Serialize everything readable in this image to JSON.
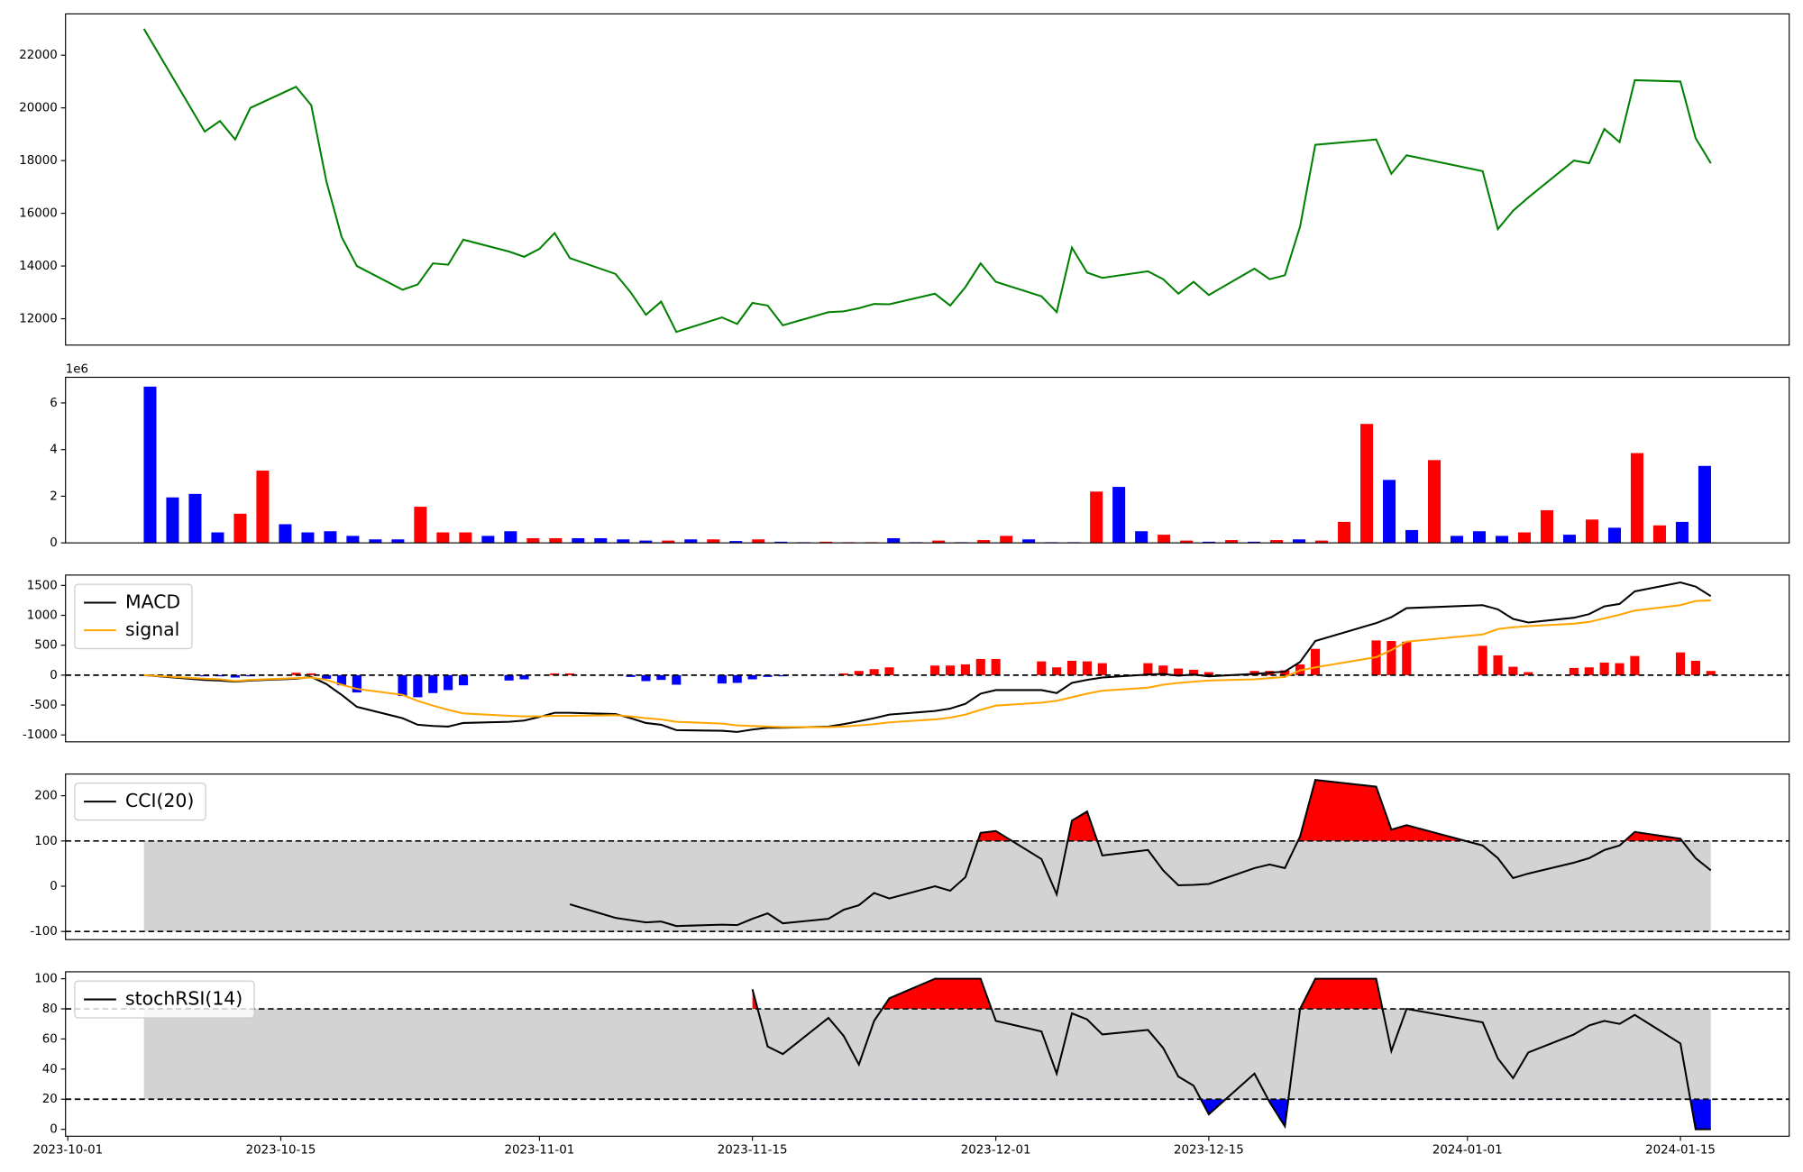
{
  "chart_data": [
    {
      "type": "line",
      "x": [
        "2023-10-06",
        "2023-10-10",
        "2023-10-11",
        "2023-10-12",
        "2023-10-13",
        "2023-10-16",
        "2023-10-17",
        "2023-10-18",
        "2023-10-19",
        "2023-10-20",
        "2023-10-23",
        "2023-10-24",
        "2023-10-25",
        "2023-10-26",
        "2023-10-27",
        "2023-10-30",
        "2023-10-31",
        "2023-11-01",
        "2023-11-02",
        "2023-11-03",
        "2023-11-06",
        "2023-11-07",
        "2023-11-08",
        "2023-11-09",
        "2023-11-10",
        "2023-11-13",
        "2023-11-14",
        "2023-11-15",
        "2023-11-16",
        "2023-11-17",
        "2023-11-20",
        "2023-11-21",
        "2023-11-22",
        "2023-11-23",
        "2023-11-24",
        "2023-11-27",
        "2023-11-28",
        "2023-11-29",
        "2023-11-30",
        "2023-12-01",
        "2023-12-04",
        "2023-12-05",
        "2023-12-06",
        "2023-12-07",
        "2023-12-08",
        "2023-12-11",
        "2023-12-12",
        "2023-12-13",
        "2023-12-14",
        "2023-12-15",
        "2023-12-18",
        "2023-12-19",
        "2023-12-20",
        "2023-12-21",
        "2023-12-22",
        "2023-12-26",
        "2023-12-27",
        "2023-12-28",
        "2024-01-02",
        "2024-01-03",
        "2024-01-04",
        "2024-01-05",
        "2024-01-08",
        "2024-01-09",
        "2024-01-10",
        "2024-01-11",
        "2024-01-12",
        "2024-01-15",
        "2024-01-16",
        "2024-01-17"
      ],
      "xlim": [
        "2023-09-30T20:24",
        "2024-01-22T03:36"
      ],
      "series": [
        {
          "color": "#008000",
          "values": [
            23000,
            19100,
            19500,
            18800,
            20000,
            20800,
            20100,
            17200,
            15100,
            14000,
            13100,
            13300,
            14100,
            14050,
            15000,
            14550,
            14350,
            14650,
            15250,
            14300,
            13700,
            13000,
            12150,
            12650,
            11500,
            12050,
            11800,
            12600,
            12500,
            11750,
            12250,
            12280,
            12400,
            12560,
            12550,
            12950,
            12500,
            13200,
            14100,
            13400,
            12850,
            12250,
            14700,
            13750,
            13550,
            13800,
            13500,
            12950,
            13400,
            12900,
            13900,
            13500,
            13650,
            15500,
            18600,
            18800,
            17500,
            18200,
            17600,
            15400,
            16100,
            16600,
            18000,
            17900,
            19200,
            18700,
            21050,
            21000,
            18850,
            17900
          ]
        }
      ],
      "ylim": [
        11000,
        23565
      ],
      "yticks": [
        12000,
        14000,
        16000,
        18000,
        20000,
        22000
      ]
    },
    {
      "type": "bar",
      "offset_text": "1e6",
      "values": [
        6.7,
        1.95,
        2.1,
        0.45,
        1.25,
        3.1,
        0.8,
        0.45,
        0.5,
        0.3,
        0.15,
        0.15,
        1.55,
        0.45,
        0.45,
        0.3,
        0.5,
        0.2,
        0.2,
        0.2,
        0.2,
        0.15,
        0.1,
        0.1,
        0.15,
        0.15,
        0.08,
        0.15,
        0.05,
        0.03,
        0.05,
        0.03,
        0.03,
        0.2,
        0.03,
        0.1,
        0.03,
        0.12,
        0.3,
        0.15,
        0.03,
        0.03,
        2.2,
        2.4,
        0.5,
        0.35,
        0.1,
        0.05,
        0.12,
        0.05,
        0.12,
        0.15,
        0.1,
        0.9,
        5.1,
        2.7,
        0.55,
        3.55,
        0.3,
        0.5,
        0.3,
        0.45,
        1.4,
        0.35,
        1.0,
        0.65,
        3.85,
        0.75,
        0.9,
        3.3
      ],
      "colors": [
        "blue",
        "blue",
        "blue",
        "blue",
        "red",
        "red",
        "blue",
        "blue",
        "blue",
        "blue",
        "blue",
        "blue",
        "red",
        "red",
        "red",
        "blue",
        "blue",
        "red",
        "red",
        "blue",
        "blue",
        "blue",
        "blue",
        "red",
        "blue",
        "red",
        "blue",
        "red",
        "blue",
        "blue",
        "red",
        "red",
        "red",
        "blue",
        "blue",
        "red",
        "blue",
        "red",
        "red",
        "blue",
        "blue",
        "blue",
        "red",
        "blue",
        "blue",
        "red",
        "red",
        "blue",
        "red",
        "blue",
        "red",
        "blue",
        "red",
        "red",
        "red",
        "blue",
        "blue",
        "red",
        "blue",
        "blue",
        "blue",
        "red",
        "red",
        "blue",
        "red",
        "blue",
        "red",
        "red",
        "blue",
        "blue"
      ],
      "ylim": [
        0,
        7.1
      ],
      "yticks": [
        0,
        2,
        4,
        6
      ]
    },
    {
      "type": "combo",
      "x": [
        "2023-10-06",
        "2023-10-10",
        "2023-10-11",
        "2023-10-12",
        "2023-10-13",
        "2023-10-16",
        "2023-10-17",
        "2023-10-18",
        "2023-10-19",
        "2023-10-20",
        "2023-10-23",
        "2023-10-24",
        "2023-10-25",
        "2023-10-26",
        "2023-10-27",
        "2023-10-30",
        "2023-10-31",
        "2023-11-01",
        "2023-11-02",
        "2023-11-03",
        "2023-11-06",
        "2023-11-07",
        "2023-11-08",
        "2023-11-09",
        "2023-11-10",
        "2023-11-13",
        "2023-11-14",
        "2023-11-15",
        "2023-11-16",
        "2023-11-17",
        "2023-11-20",
        "2023-11-21",
        "2023-11-22",
        "2023-11-23",
        "2023-11-24",
        "2023-11-27",
        "2023-11-28",
        "2023-11-29",
        "2023-11-30",
        "2023-12-01",
        "2023-12-04",
        "2023-12-05",
        "2023-12-06",
        "2023-12-07",
        "2023-12-08",
        "2023-12-11",
        "2023-12-12",
        "2023-12-13",
        "2023-12-14",
        "2023-12-15",
        "2023-12-18",
        "2023-12-19",
        "2023-12-20",
        "2023-12-21",
        "2023-12-22",
        "2023-12-26",
        "2023-12-27",
        "2023-12-28",
        "2024-01-02",
        "2024-01-03",
        "2024-01-04",
        "2024-01-05",
        "2024-01-08",
        "2024-01-09",
        "2024-01-10",
        "2024-01-11",
        "2024-01-12",
        "2024-01-15",
        "2024-01-16",
        "2024-01-17"
      ],
      "xlim": [
        "2023-09-30T20:24",
        "2024-01-22T03:36"
      ],
      "series": [
        {
          "name": "MACD",
          "color": "#000000",
          "values": [
            0,
            -80,
            -90,
            -110,
            -90,
            -60,
            -30,
            -150,
            -330,
            -530,
            -720,
            -830,
            -850,
            -860,
            -800,
            -780,
            -760,
            -700,
            -630,
            -630,
            -650,
            -720,
            -800,
            -830,
            -920,
            -930,
            -950,
            -910,
            -880,
            -880,
            -860,
            -820,
            -770,
            -720,
            -660,
            -600,
            -560,
            -480,
            -310,
            -250,
            -250,
            -300,
            -130,
            -80,
            -40,
            10,
            20,
            -10,
            10,
            -20,
            20,
            40,
            60,
            220,
            570,
            870,
            970,
            1120,
            1170,
            1100,
            940,
            880,
            960,
            1020,
            1150,
            1190,
            1400,
            1550,
            1480,
            1320
          ]
        },
        {
          "name": "signal",
          "color": "#ffa500",
          "values": [
            0,
            -60,
            -70,
            -100,
            -80,
            -50,
            -40,
            -80,
            -160,
            -230,
            -330,
            -430,
            -510,
            -580,
            -640,
            -680,
            -690,
            -690,
            -680,
            -680,
            -670,
            -690,
            -720,
            -740,
            -780,
            -810,
            -840,
            -850,
            -860,
            -870,
            -870,
            -860,
            -840,
            -820,
            -790,
            -740,
            -710,
            -660,
            -580,
            -510,
            -460,
            -430,
            -370,
            -310,
            -260,
            -210,
            -160,
            -130,
            -110,
            -90,
            -70,
            -50,
            -30,
            80,
            130,
            300,
            420,
            560,
            680,
            770,
            800,
            820,
            860,
            890,
            950,
            1010,
            1080,
            1170,
            1240,
            1250
          ]
        },
        {
          "kind": "bar",
          "pos_color": "red",
          "neg_color": "blue",
          "values": [
            0,
            -20,
            -20,
            -40,
            -20,
            40,
            30,
            -60,
            -170,
            -290,
            -350,
            -370,
            -300,
            -250,
            -170,
            -90,
            -70,
            0,
            30,
            30,
            0,
            -30,
            -100,
            -80,
            -160,
            -140,
            -130,
            -70,
            -30,
            -20,
            -5,
            30,
            70,
            100,
            130,
            160,
            160,
            180,
            270,
            270,
            230,
            130,
            240,
            230,
            200,
            200,
            160,
            110,
            90,
            50,
            70,
            70,
            80,
            180,
            440,
            580,
            570,
            560,
            490,
            330,
            140,
            50,
            120,
            130,
            210,
            200,
            320,
            380,
            240,
            70
          ]
        }
      ],
      "zero_line": 0,
      "legend": "upper left",
      "ylim": [
        -1115,
        1673
      ],
      "yticks": [
        -1000,
        -500,
        0,
        500,
        1000,
        1500
      ]
    },
    {
      "type": "band",
      "x": [
        "2023-10-06",
        "2023-10-10",
        "2023-10-11",
        "2023-10-12",
        "2023-10-13",
        "2023-10-16",
        "2023-10-17",
        "2023-10-18",
        "2023-10-19",
        "2023-10-20",
        "2023-10-23",
        "2023-10-24",
        "2023-10-25",
        "2023-10-26",
        "2023-10-27",
        "2023-10-30",
        "2023-10-31",
        "2023-11-01",
        "2023-11-02",
        "2023-11-03",
        "2023-11-06",
        "2023-11-07",
        "2023-11-08",
        "2023-11-09",
        "2023-11-10",
        "2023-11-13",
        "2023-11-14",
        "2023-11-15",
        "2023-11-16",
        "2023-11-17",
        "2023-11-20",
        "2023-11-21",
        "2023-11-22",
        "2023-11-23",
        "2023-11-24",
        "2023-11-27",
        "2023-11-28",
        "2023-11-29",
        "2023-11-30",
        "2023-12-01",
        "2023-12-04",
        "2023-12-05",
        "2023-12-06",
        "2023-12-07",
        "2023-12-08",
        "2023-12-11",
        "2023-12-12",
        "2023-12-13",
        "2023-12-14",
        "2023-12-15",
        "2023-12-18",
        "2023-12-19",
        "2023-12-20",
        "2023-12-21",
        "2023-12-22",
        "2023-12-26",
        "2023-12-27",
        "2023-12-28",
        "2024-01-02",
        "2024-01-03",
        "2024-01-04",
        "2024-01-05",
        "2024-01-08",
        "2024-01-09",
        "2024-01-10",
        "2024-01-11",
        "2024-01-12",
        "2024-01-15",
        "2024-01-16",
        "2024-01-17"
      ],
      "xlim": [
        "2023-09-30T20:24",
        "2024-01-22T03:36"
      ],
      "series": [
        {
          "name": "CCI(20)",
          "color": "#000000",
          "values": [
            null,
            null,
            null,
            null,
            null,
            null,
            null,
            null,
            null,
            null,
            null,
            null,
            null,
            null,
            null,
            null,
            null,
            null,
            null,
            -40,
            -70,
            -75,
            -80,
            -78,
            -88,
            -85,
            -86,
            -72,
            -60,
            -82,
            -72,
            -52,
            -42,
            -15,
            -27,
            0,
            -10,
            20,
            118,
            122,
            60,
            -18,
            145,
            165,
            68,
            80,
            35,
            2,
            3,
            5,
            40,
            48,
            40,
            110,
            235,
            220,
            125,
            135,
            90,
            62,
            18,
            28,
            52,
            62,
            80,
            90,
            120,
            105,
            62,
            35
          ]
        }
      ],
      "upper": 100,
      "lower": -100,
      "band_color": "#d3d3d3",
      "fill_above": "red",
      "fill_below": "blue",
      "legend": "upper left",
      "ylim": [
        -118,
        248
      ],
      "yticks": [
        -100,
        0,
        100,
        200
      ]
    },
    {
      "type": "band",
      "x": [
        "2023-10-06",
        "2023-10-10",
        "2023-10-11",
        "2023-10-12",
        "2023-10-13",
        "2023-10-16",
        "2023-10-17",
        "2023-10-18",
        "2023-10-19",
        "2023-10-20",
        "2023-10-23",
        "2023-10-24",
        "2023-10-25",
        "2023-10-26",
        "2023-10-27",
        "2023-10-30",
        "2023-10-31",
        "2023-11-01",
        "2023-11-02",
        "2023-11-03",
        "2023-11-06",
        "2023-11-07",
        "2023-11-08",
        "2023-11-09",
        "2023-11-10",
        "2023-11-13",
        "2023-11-14",
        "2023-11-15",
        "2023-11-16",
        "2023-11-17",
        "2023-11-20",
        "2023-11-21",
        "2023-11-22",
        "2023-11-23",
        "2023-11-24",
        "2023-11-27",
        "2023-11-28",
        "2023-11-29",
        "2023-11-30",
        "2023-12-01",
        "2023-12-04",
        "2023-12-05",
        "2023-12-06",
        "2023-12-07",
        "2023-12-08",
        "2023-12-11",
        "2023-12-12",
        "2023-12-13",
        "2023-12-14",
        "2023-12-15",
        "2023-12-18",
        "2023-12-19",
        "2023-12-20",
        "2023-12-21",
        "2023-12-22",
        "2023-12-26",
        "2023-12-27",
        "2023-12-28",
        "2024-01-02",
        "2024-01-03",
        "2024-01-04",
        "2024-01-05",
        "2024-01-08",
        "2024-01-09",
        "2024-01-10",
        "2024-01-11",
        "2024-01-12",
        "2024-01-15",
        "2024-01-16",
        "2024-01-17"
      ],
      "xlim": [
        "2023-09-30T20:24",
        "2024-01-22T03:36"
      ],
      "xticks": [
        "2023-10-01",
        "2023-10-15",
        "2023-11-01",
        "2023-11-15",
        "2023-12-01",
        "2023-12-15",
        "2024-01-01",
        "2024-01-15"
      ],
      "series": [
        {
          "name": "stochRSI(14)",
          "color": "#000000",
          "values": [
            null,
            null,
            null,
            null,
            null,
            null,
            null,
            null,
            null,
            null,
            null,
            null,
            null,
            null,
            null,
            null,
            null,
            null,
            null,
            null,
            null,
            null,
            null,
            null,
            null,
            null,
            null,
            93,
            55,
            50,
            74,
            62,
            43,
            72,
            87,
            100,
            100,
            100,
            100,
            72,
            65,
            37,
            77,
            73,
            63,
            66,
            54,
            35,
            29,
            10,
            37,
            18,
            2,
            80,
            100,
            100,
            52,
            80,
            71,
            47,
            34,
            51,
            63,
            69,
            72,
            70,
            76,
            57,
            0,
            0
          ]
        }
      ],
      "upper": 80,
      "lower": 20,
      "band_color": "#d3d3d3",
      "fill_above": "red",
      "fill_below": "blue",
      "legend": "upper left",
      "ylim": [
        -4.6,
        104.6
      ],
      "yticks": [
        0,
        20,
        40,
        60,
        80,
        100
      ]
    }
  ]
}
